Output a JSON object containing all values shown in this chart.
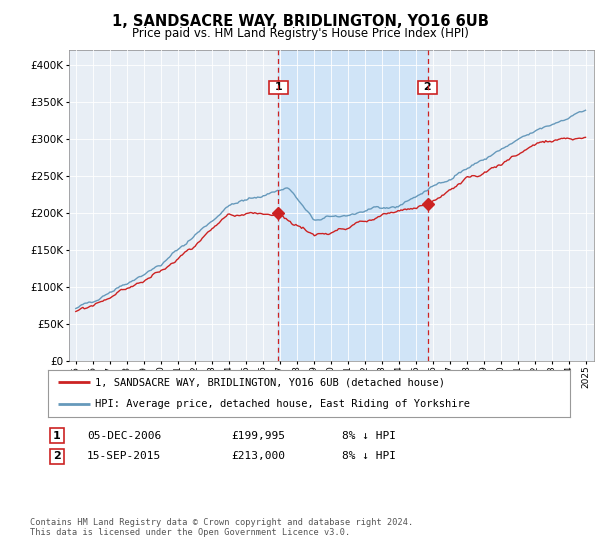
{
  "title": "1, SANDSACRE WAY, BRIDLINGTON, YO16 6UB",
  "subtitle": "Price paid vs. HM Land Registry's House Price Index (HPI)",
  "legend_label_red": "1, SANDSACRE WAY, BRIDLINGTON, YO16 6UB (detached house)",
  "legend_label_blue": "HPI: Average price, detached house, East Riding of Yorkshire",
  "transaction1_label": "1",
  "transaction1_date": "05-DEC-2006",
  "transaction1_price": "£199,995",
  "transaction1_note": "8% ↓ HPI",
  "transaction2_label": "2",
  "transaction2_date": "15-SEP-2015",
  "transaction2_price": "£213,000",
  "transaction2_note": "8% ↓ HPI",
  "footnote": "Contains HM Land Registry data © Crown copyright and database right 2024.\nThis data is licensed under the Open Government Licence v3.0.",
  "ylim": [
    0,
    420000
  ],
  "yticks": [
    0,
    50000,
    100000,
    150000,
    200000,
    250000,
    300000,
    350000,
    400000
  ],
  "plot_bg": "#e8eef5",
  "shade_color": "#d0e4f7",
  "red_color": "#cc2222",
  "blue_color": "#6699bb",
  "vline_color": "#cc2222",
  "marker1_year": 2006.92,
  "marker2_year": 2015.71,
  "marker1_price": 199995,
  "marker2_price": 213000
}
